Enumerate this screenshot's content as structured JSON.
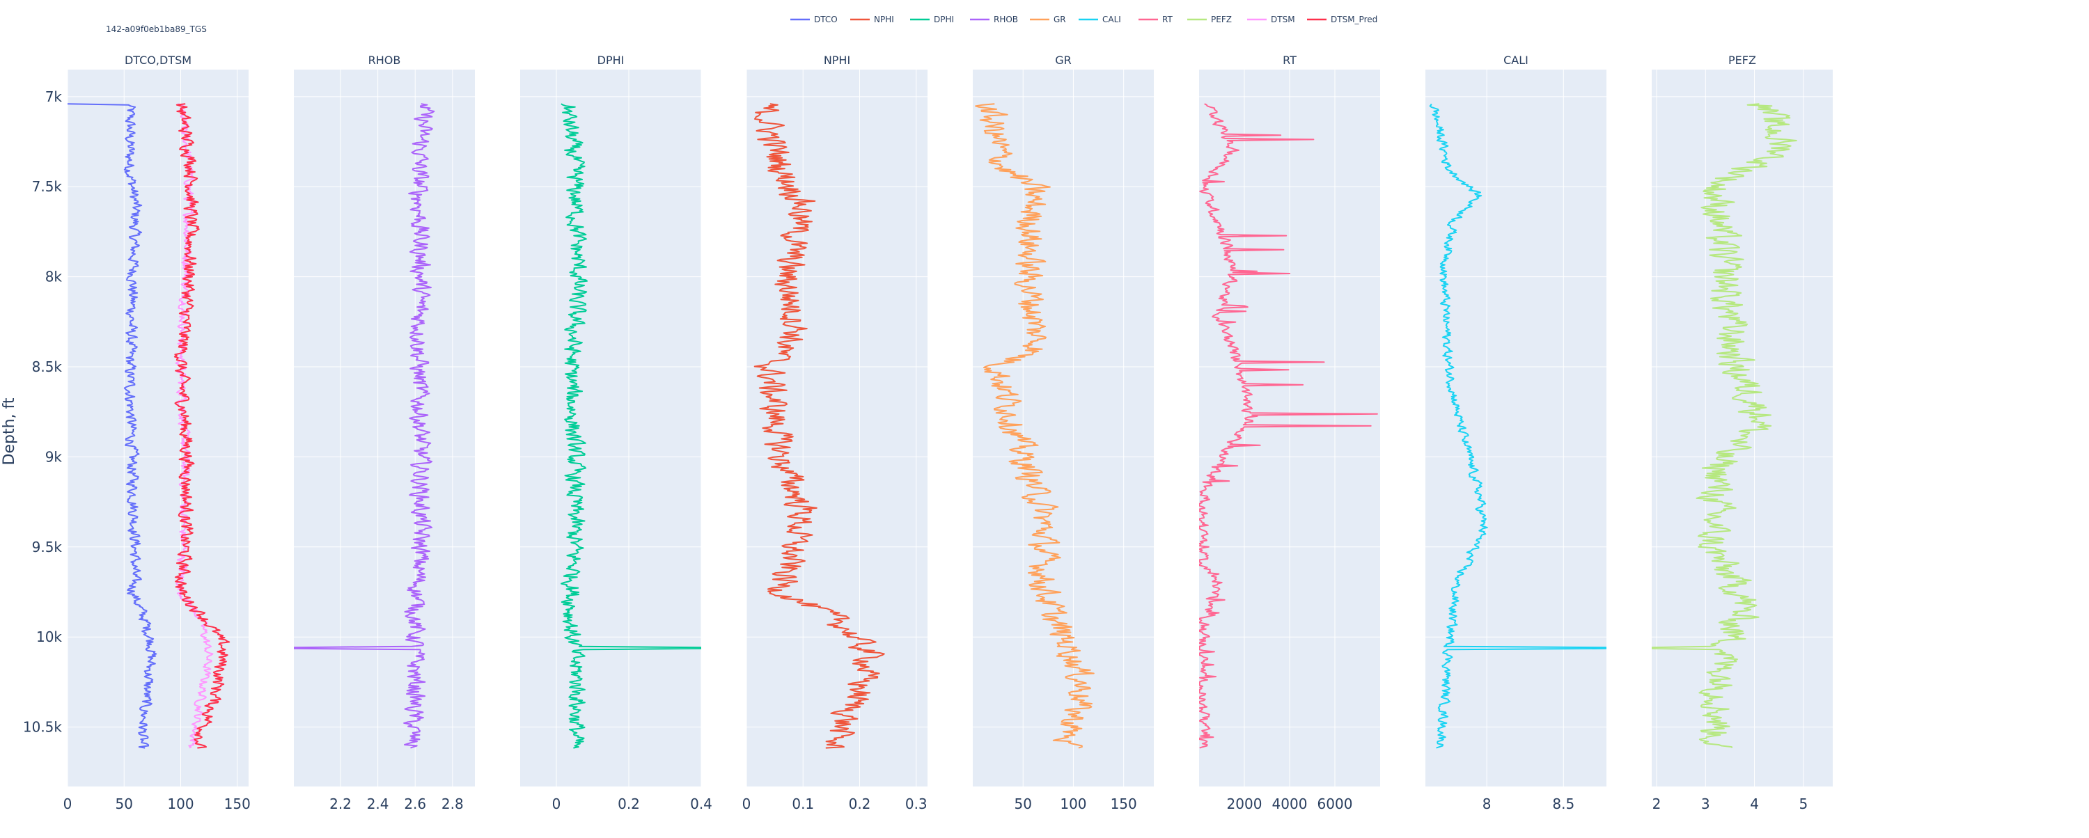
{
  "well_id": "142-a09f0eb1ba89_TGS",
  "depth_axis": {
    "label": "Depth, ft",
    "range": [
      6850,
      10830
    ],
    "ticks": [
      {
        "value": 7000,
        "label": "7k"
      },
      {
        "value": 7500,
        "label": "7.5k"
      },
      {
        "value": 8000,
        "label": "8k"
      },
      {
        "value": 8500,
        "label": "8.5k"
      },
      {
        "value": 9000,
        "label": "9k"
      },
      {
        "value": 9500,
        "label": "9.5k"
      },
      {
        "value": 10000,
        "label": "10k"
      },
      {
        "value": 10500,
        "label": "10.5k"
      }
    ]
  },
  "legend": {
    "placement": "top-center",
    "items": [
      {
        "name": "DTCO",
        "color": "#636efa"
      },
      {
        "name": "NPHI",
        "color": "#ef553b"
      },
      {
        "name": "DPHI",
        "color": "#00cc96"
      },
      {
        "name": "RHOB",
        "color": "#ab63fa"
      },
      {
        "name": "GR",
        "color": "#ffa15a"
      },
      {
        "name": "CALI",
        "color": "#19d3f3"
      },
      {
        "name": "RT",
        "color": "#ff6692"
      },
      {
        "name": "PEFZ",
        "color": "#b6e880"
      },
      {
        "name": "DTSM",
        "color": "#ff97ff"
      },
      {
        "name": "DTSM_Pred",
        "color": "#fe2f4a"
      }
    ]
  },
  "colors": {
    "plot_bg": "#e5ecf6",
    "grid": "#ffffff",
    "tick_text": "#2a3f5f"
  },
  "chart_data": {
    "type": "line",
    "orientation": "depth-vertical",
    "grid": true,
    "depth_start": 7040,
    "depth_end": 10620,
    "tracks": [
      {
        "title": "DTCO,DTSM",
        "xlim": [
          0,
          160
        ],
        "ticks": [
          {
            "value": 0,
            "label": "0"
          },
          {
            "value": 50,
            "label": "50"
          },
          {
            "value": 100,
            "label": "100"
          },
          {
            "value": 150,
            "label": "150"
          }
        ],
        "series": [
          {
            "name": "DTCO",
            "color": "#636efa",
            "amp": 5,
            "spike_at": 7040,
            "spike_value": 0,
            "profile": [
              [
                7040,
                55
              ],
              [
                7400,
                55
              ],
              [
                7600,
                60
              ],
              [
                8000,
                58
              ],
              [
                8500,
                55
              ],
              [
                9000,
                57
              ],
              [
                9500,
                60
              ],
              [
                9750,
                58
              ],
              [
                9900,
                68
              ],
              [
                10050,
                75
              ],
              [
                10300,
                70
              ],
              [
                10620,
                65
              ]
            ]
          },
          {
            "name": "DTSM",
            "color": "#ff97ff",
            "amp": 4,
            "profile": [
              [
                7040,
                100
              ],
              [
                7400,
                108
              ],
              [
                8000,
                105
              ],
              [
                8500,
                100
              ],
              [
                9000,
                104
              ],
              [
                9500,
                102
              ],
              [
                9750,
                100
              ],
              [
                9900,
                118
              ],
              [
                10100,
                125
              ],
              [
                10620,
                110
              ]
            ]
          },
          {
            "name": "DTSM_Pred",
            "color": "#fe2f4a",
            "amp": 6,
            "profile": [
              [
                7040,
                100
              ],
              [
                7400,
                110
              ],
              [
                8000,
                108
              ],
              [
                8500,
                100
              ],
              [
                9000,
                106
              ],
              [
                9500,
                104
              ],
              [
                9750,
                100
              ],
              [
                9900,
                122
              ],
              [
                10050,
                138
              ],
              [
                10300,
                132
              ],
              [
                10620,
                115
              ]
            ]
          }
        ]
      },
      {
        "title": "RHOB",
        "xlim": [
          1.95,
          2.92
        ],
        "ticks": [
          {
            "value": 2.2,
            "label": "2.2"
          },
          {
            "value": 2.4,
            "label": "2.4"
          },
          {
            "value": 2.6,
            "label": "2.6"
          },
          {
            "value": 2.8,
            "label": "2.8"
          }
        ],
        "series": [
          {
            "name": "RHOB",
            "color": "#ab63fa",
            "amp": 0.05,
            "spike_at": 10060,
            "spike_value": 1.95,
            "profile": [
              [
                7040,
                2.65
              ],
              [
                7400,
                2.62
              ],
              [
                8000,
                2.63
              ],
              [
                8500,
                2.62
              ],
              [
                9000,
                2.63
              ],
              [
                9500,
                2.63
              ],
              [
                9900,
                2.6
              ],
              [
                10300,
                2.6
              ],
              [
                10620,
                2.58
              ]
            ]
          }
        ]
      },
      {
        "title": "DPHI",
        "xlim": [
          -0.1,
          0.4
        ],
        "ticks": [
          {
            "value": 0,
            "label": "0"
          },
          {
            "value": 0.2,
            "label": "0.2"
          },
          {
            "value": 0.4,
            "label": "0.4"
          }
        ],
        "series": [
          {
            "name": "DPHI",
            "color": "#00cc96",
            "amp": 0.025,
            "spike_at": 10060,
            "spike_value": 0.4,
            "profile": [
              [
                7040,
                0.03
              ],
              [
                7400,
                0.05
              ],
              [
                8000,
                0.06
              ],
              [
                8500,
                0.04
              ],
              [
                9000,
                0.05
              ],
              [
                9500,
                0.05
              ],
              [
                9900,
                0.04
              ],
              [
                10300,
                0.06
              ],
              [
                10620,
                0.05
              ]
            ]
          }
        ]
      },
      {
        "title": "NPHI",
        "xlim": [
          0,
          0.32
        ],
        "ticks": [
          {
            "value": 0,
            "label": "0"
          },
          {
            "value": 0.1,
            "label": "0.1"
          },
          {
            "value": 0.2,
            "label": "0.2"
          },
          {
            "value": 0.3,
            "label": "0.3"
          }
        ],
        "series": [
          {
            "name": "NPHI",
            "color": "#ef553b",
            "amp": 0.025,
            "profile": [
              [
                7040,
                0.03
              ],
              [
                7400,
                0.06
              ],
              [
                7600,
                0.1
              ],
              [
                8000,
                0.07
              ],
              [
                8300,
                0.09
              ],
              [
                8500,
                0.04
              ],
              [
                9000,
                0.06
              ],
              [
                9300,
                0.1
              ],
              [
                9750,
                0.06
              ],
              [
                9900,
                0.16
              ],
              [
                10100,
                0.22
              ],
              [
                10300,
                0.2
              ],
              [
                10620,
                0.15
              ]
            ]
          }
        ]
      },
      {
        "title": "GR",
        "xlim": [
          0,
          180
        ],
        "ticks": [
          {
            "value": 50,
            "label": "50"
          },
          {
            "value": 100,
            "label": "100"
          },
          {
            "value": 150,
            "label": "150"
          }
        ],
        "series": [
          {
            "name": "GR",
            "color": "#ffa15a",
            "amp": 14,
            "profile": [
              [
                7040,
                15
              ],
              [
                7400,
                30
              ],
              [
                7500,
                60
              ],
              [
                8000,
                55
              ],
              [
                8400,
                65
              ],
              [
                8500,
                25
              ],
              [
                9000,
                50
              ],
              [
                9300,
                70
              ],
              [
                9700,
                70
              ],
              [
                9900,
                80
              ],
              [
                10100,
                100
              ],
              [
                10300,
                110
              ],
              [
                10620,
                90
              ]
            ]
          }
        ]
      },
      {
        "title": "RT",
        "xlim": [
          0,
          8000
        ],
        "ticks": [
          {
            "value": 2000,
            "label": "2000"
          },
          {
            "value": 4000,
            "label": "4000"
          },
          {
            "value": 6000,
            "label": "6000"
          }
        ],
        "series": [
          {
            "name": "RT",
            "color": "#ff6692",
            "amp": 250,
            "spiky": true,
            "profile": [
              [
                7040,
                400
              ],
              [
                7300,
                1500
              ],
              [
                7500,
                200
              ],
              [
                7800,
                1200
              ],
              [
                8000,
                1500
              ],
              [
                8200,
                800
              ],
              [
                8500,
                1800
              ],
              [
                8800,
                2200
              ],
              [
                9000,
                1000
              ],
              [
                9200,
                200
              ],
              [
                9600,
                100
              ],
              [
                9700,
                900
              ],
              [
                9900,
                200
              ],
              [
                10300,
                150
              ],
              [
                10620,
                150
              ]
            ]
          }
        ]
      },
      {
        "title": "CALI",
        "xlim": [
          7.6,
          8.78
        ],
        "ticks": [
          {
            "value": 8,
            "label": "8"
          },
          {
            "value": 8.5,
            "label": "8.5"
          }
        ],
        "series": [
          {
            "name": "CALI",
            "color": "#19d3f3",
            "amp": 0.03,
            "spike_at": 10060,
            "spike_value": 8.78,
            "profile": [
              [
                7040,
                7.65
              ],
              [
                7400,
                7.75
              ],
              [
                7550,
                7.95
              ],
              [
                7700,
                7.78
              ],
              [
                8000,
                7.72
              ],
              [
                8500,
                7.75
              ],
              [
                8800,
                7.82
              ],
              [
                9200,
                7.95
              ],
              [
                9400,
                7.98
              ],
              [
                9700,
                7.8
              ],
              [
                10100,
                7.75
              ],
              [
                10620,
                7.7
              ]
            ]
          }
        ]
      },
      {
        "title": "PEFZ",
        "xlim": [
          1.9,
          5.6
        ],
        "ticks": [
          {
            "value": 2,
            "label": "2"
          },
          {
            "value": 3,
            "label": "3"
          },
          {
            "value": 4,
            "label": "4"
          },
          {
            "value": 5,
            "label": "5"
          }
        ],
        "series": [
          {
            "name": "PEFZ",
            "color": "#b6e880",
            "amp": 0.35,
            "spike_at": 10060,
            "spike_value": 1.9,
            "profile": [
              [
                7040,
                4.2
              ],
              [
                7300,
                4.6
              ],
              [
                7500,
                3.2
              ],
              [
                8000,
                3.4
              ],
              [
                8500,
                3.6
              ],
              [
                8800,
                4.2
              ],
              [
                9000,
                3.3
              ],
              [
                9500,
                3.1
              ],
              [
                9800,
                3.8
              ],
              [
                10100,
                3.4
              ],
              [
                10620,
                3.2
              ]
            ]
          }
        ]
      }
    ]
  }
}
